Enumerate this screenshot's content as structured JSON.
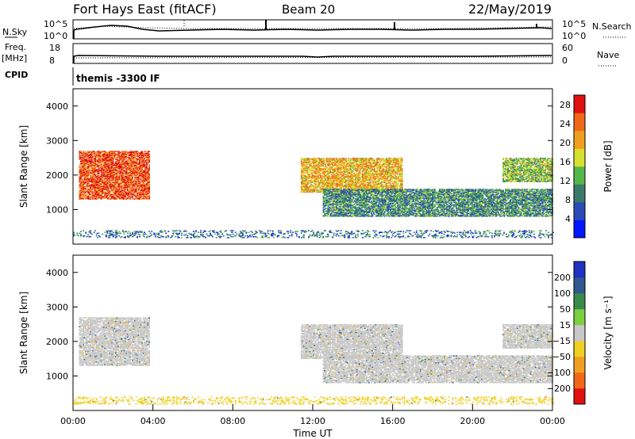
{
  "header": {
    "station": "Fort Hays East (fitACF)",
    "beam": "Beam 20",
    "date": "22/May/2019"
  },
  "status_panels": {
    "nsky_label": "N.Sky",
    "nsky_ticks": [
      "10^5",
      "10^0"
    ],
    "nsearch_label": "N.Search",
    "nsearch_ticks": [
      "10^5",
      "10^0"
    ],
    "freq_label": "Freq.",
    "freq_unit": "[MHz]",
    "freq_ticks": [
      "18",
      "8"
    ],
    "nave_label": "Nave",
    "nave_ticks": [
      "60",
      "0"
    ],
    "cpid_label": "CPID",
    "cpid_value": "themis -3300 IF"
  },
  "chart_data": [
    {
      "type": "heatmap",
      "name": "power",
      "ylabel": "Slant Range [km]",
      "xlabel": "Time UT",
      "x_ticks": [
        "00:00",
        "04:00",
        "08:00",
        "12:00",
        "16:00",
        "20:00",
        "00:00"
      ],
      "y_ticks": [
        1000,
        2000,
        3000,
        4000
      ],
      "ylim": [
        0,
        4500
      ],
      "xlim_hours": [
        0,
        24
      ],
      "colorbar": {
        "label": "Power [dB]",
        "ticks": [
          4,
          8,
          12,
          16,
          20,
          24,
          28
        ],
        "range": [
          0,
          30
        ],
        "colors": [
          "#0018ff",
          "#2a4ab8",
          "#3a7a6a",
          "#56b84a",
          "#d8e030",
          "#f0a020",
          "#f06818",
          "#e01010"
        ]
      },
      "regions": [
        {
          "t_start": 0.3,
          "t_end": 3.8,
          "range_low": 1300,
          "range_high": 2700,
          "power_db": 26
        },
        {
          "t_start": 11.4,
          "t_end": 16.5,
          "range_low": 1500,
          "range_high": 2500,
          "power_db": 20
        },
        {
          "t_start": 12.5,
          "t_end": 24.0,
          "range_low": 800,
          "range_high": 1600,
          "power_db": 10
        },
        {
          "t_start": 21.5,
          "t_end": 24.0,
          "range_low": 1800,
          "range_high": 2500,
          "power_db": 14
        },
        {
          "t_start": 0.0,
          "t_end": 24.0,
          "range_low": 180,
          "range_high": 400,
          "power_db": 8
        }
      ]
    },
    {
      "type": "heatmap",
      "name": "velocity",
      "ylabel": "Slant Range [km]",
      "xlabel": "Time UT",
      "x_ticks": [
        "00:00",
        "04:00",
        "08:00",
        "12:00",
        "16:00",
        "20:00",
        "00:00"
      ],
      "y_ticks": [
        1000,
        2000,
        3000,
        4000
      ],
      "ylim": [
        0,
        4500
      ],
      "xlim_hours": [
        0,
        24
      ],
      "colorbar": {
        "label": "Velocity [m s⁻¹]",
        "ticks": [
          "200",
          "100",
          "50",
          "15",
          "−15",
          "−50",
          "−100",
          "−200"
        ],
        "range": [
          -250,
          250
        ],
        "colors": [
          "#2030c0",
          "#305890",
          "#3a8a4a",
          "#7ad040",
          "#c8c8c8",
          "#f0d020",
          "#f0a020",
          "#f06818",
          "#e01010"
        ]
      },
      "regions": [
        {
          "t_start": 0.3,
          "t_end": 3.8,
          "range_low": 1300,
          "range_high": 2700,
          "velocity": 0
        },
        {
          "t_start": 11.4,
          "t_end": 16.5,
          "range_low": 1500,
          "range_high": 2500,
          "velocity": 0
        },
        {
          "t_start": 12.5,
          "t_end": 24.0,
          "range_low": 800,
          "range_high": 1600,
          "velocity": 0
        },
        {
          "t_start": 21.5,
          "t_end": 24.0,
          "range_low": 1800,
          "range_high": 2500,
          "velocity": 0
        },
        {
          "t_start": 0.0,
          "t_end": 24.0,
          "range_low": 180,
          "range_high": 400,
          "velocity": -40
        }
      ]
    }
  ]
}
